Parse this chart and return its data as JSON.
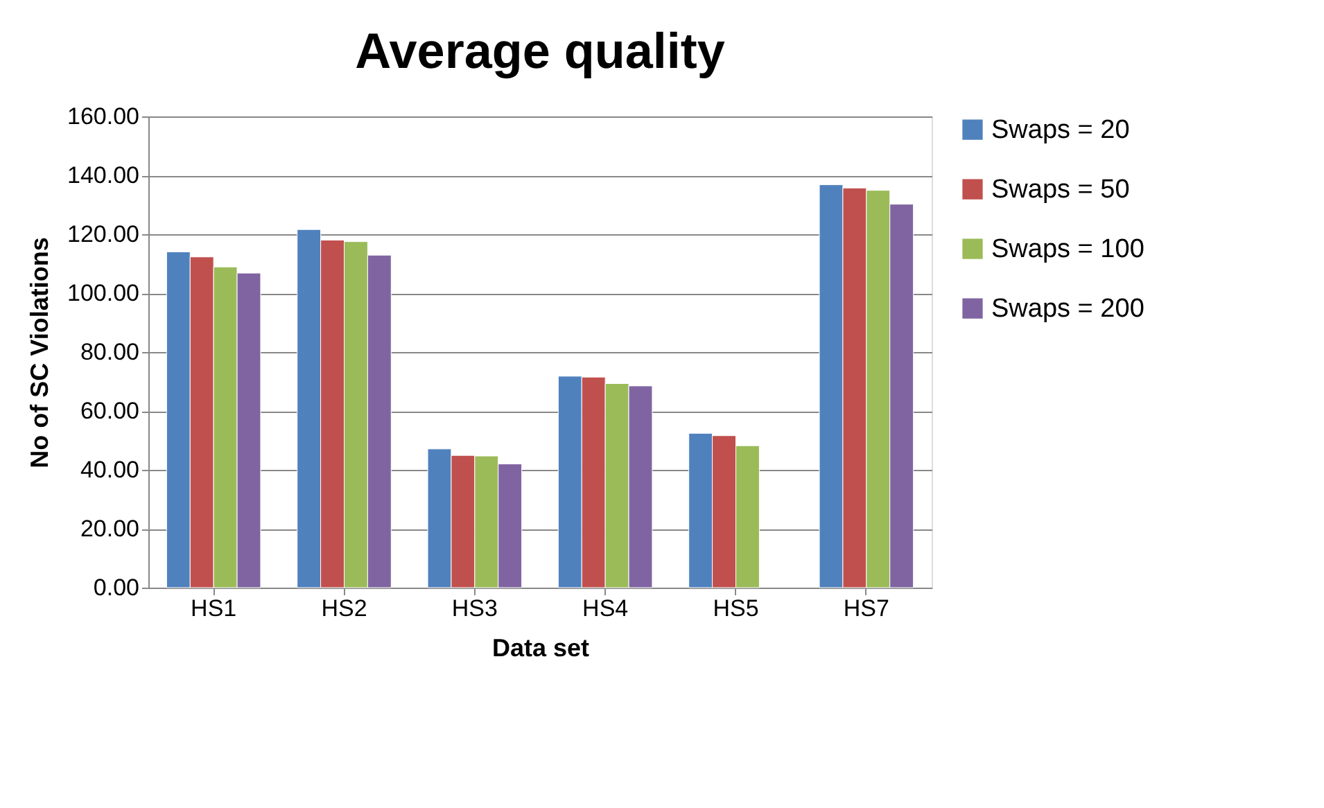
{
  "chart_data": {
    "type": "bar",
    "title": "Average quality",
    "xlabel": "Data set",
    "ylabel": "No of SC Violations",
    "categories": [
      "HS1",
      "HS2",
      "HS3",
      "HS4",
      "HS5",
      "HS7"
    ],
    "series": [
      {
        "name": "Swaps = 20",
        "color": "#4f81bd",
        "values": [
          114.0,
          121.6,
          47.1,
          71.8,
          52.4,
          136.8
        ]
      },
      {
        "name": "Swaps = 50",
        "color": "#c0504d",
        "values": [
          112.3,
          118.0,
          44.9,
          71.5,
          51.6,
          135.7
        ]
      },
      {
        "name": "Swaps = 100",
        "color": "#9bbb59",
        "values": [
          108.9,
          117.5,
          44.7,
          69.3,
          48.2,
          134.9
        ]
      },
      {
        "name": "Swaps = 200",
        "color": "#8064a2",
        "values": [
          106.8,
          112.9,
          42.0,
          68.5,
          null,
          130.2
        ]
      }
    ],
    "ylim": [
      0,
      160
    ],
    "yticks": [
      {
        "value": 0,
        "label": "0.00"
      },
      {
        "value": 20,
        "label": "20.00"
      },
      {
        "value": 40,
        "label": "40.00"
      },
      {
        "value": 60,
        "label": "60.00"
      },
      {
        "value": 80,
        "label": "80.00"
      },
      {
        "value": 100,
        "label": "100.00"
      },
      {
        "value": 120,
        "label": "120.00"
      },
      {
        "value": 140,
        "label": "140.00"
      },
      {
        "value": 160,
        "label": "160.00"
      }
    ],
    "grid": "y",
    "legend": "right"
  }
}
